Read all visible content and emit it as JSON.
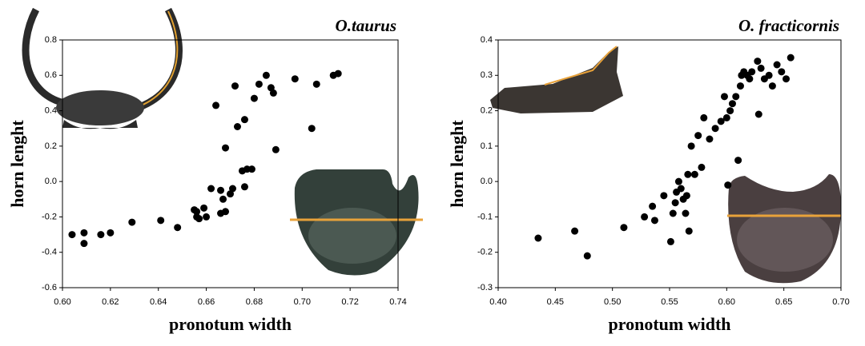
{
  "chart_data": [
    {
      "type": "scatter",
      "title": "O.taurus",
      "x_label": "pronotum width",
      "y_label": "horn lenght",
      "color": "#000000",
      "x": [
        0.604,
        0.609,
        0.609,
        0.616,
        0.62,
        0.629,
        0.641,
        0.648,
        0.655,
        0.656,
        0.657,
        0.659,
        0.66,
        0.662,
        0.664,
        0.666,
        0.666,
        0.667,
        0.668,
        0.668,
        0.67,
        0.671,
        0.672,
        0.673,
        0.675,
        0.676,
        0.676,
        0.677,
        0.679,
        0.68,
        0.682,
        0.685,
        0.687,
        0.689,
        0.688,
        0.697,
        0.704,
        0.706,
        0.713,
        0.715,
        0.656
      ],
      "values": [
        -0.3,
        -0.29,
        -0.35,
        -0.3,
        -0.29,
        -0.23,
        -0.22,
        -0.26,
        -0.16,
        -0.2,
        -0.21,
        -0.15,
        -0.2,
        -0.04,
        0.43,
        -0.05,
        -0.18,
        -0.1,
        -0.17,
        0.19,
        -0.07,
        -0.04,
        0.54,
        0.31,
        0.06,
        0.35,
        -0.03,
        0.07,
        0.07,
        0.47,
        0.55,
        0.6,
        0.53,
        0.18,
        0.5,
        0.58,
        0.3,
        0.55,
        0.6,
        0.61,
        -0.17
      ],
      "xlim": [
        0.6,
        0.74
      ],
      "xticks": [
        {
          "value": 0.6,
          "label": "0.60"
        },
        0.62,
        0.64,
        0.66,
        0.68,
        {
          "value": 0.7,
          "label": "0.70"
        },
        0.72,
        0.74
      ],
      "ylim": [
        -0.6,
        0.8
      ],
      "yticks": [
        -0.6,
        -0.4,
        -0.2,
        {
          "value": 0,
          "label": "0.0"
        },
        0.2,
        0.4,
        0.6,
        0.8
      ]
    },
    {
      "type": "scatter",
      "title": "O. fracticornis",
      "x_label": "pronotum width",
      "y_label": "horn lenght",
      "color": "#000000",
      "x": [
        0.435,
        0.467,
        0.478,
        0.51,
        0.528,
        0.535,
        0.537,
        0.545,
        0.551,
        0.553,
        0.555,
        0.556,
        0.558,
        0.56,
        0.562,
        0.564,
        0.565,
        0.566,
        0.567,
        0.569,
        0.572,
        0.575,
        0.578,
        0.58,
        0.585,
        0.59,
        0.595,
        0.598,
        0.6,
        0.601,
        0.603,
        0.605,
        0.608,
        0.61,
        0.612,
        0.613,
        0.615,
        0.618,
        0.62,
        0.622,
        0.627,
        0.628,
        0.63,
        0.633,
        0.637,
        0.64,
        0.644,
        0.648,
        0.652,
        0.656
      ],
      "values": [
        -0.16,
        -0.14,
        -0.21,
        -0.13,
        -0.1,
        -0.07,
        -0.11,
        -0.04,
        -0.17,
        -0.09,
        -0.06,
        -0.03,
        0.0,
        -0.02,
        -0.05,
        -0.09,
        -0.04,
        0.02,
        -0.14,
        0.1,
        0.02,
        0.13,
        0.04,
        0.18,
        0.12,
        0.15,
        0.17,
        0.24,
        0.18,
        -0.01,
        0.2,
        0.22,
        0.24,
        0.06,
        0.27,
        0.3,
        0.31,
        0.3,
        0.29,
        0.31,
        0.34,
        0.19,
        0.32,
        0.29,
        0.3,
        0.27,
        0.33,
        0.31,
        0.29,
        0.35
      ],
      "xlim": [
        0.4,
        0.7
      ],
      "xticks": [
        {
          "value": 0.4,
          "label": "0.40"
        },
        0.45,
        {
          "value": 0.5,
          "label": "0.50"
        },
        0.55,
        {
          "value": 0.6,
          "label": "0.60"
        },
        0.65,
        {
          "value": 0.7,
          "label": "0.70"
        }
      ],
      "ylim": [
        -0.3,
        0.4
      ],
      "yticks": [
        -0.3,
        -0.2,
        -0.1,
        {
          "value": 0,
          "label": "0.0"
        },
        0.1,
        0.2,
        0.3,
        0.4
      ]
    }
  ]
}
